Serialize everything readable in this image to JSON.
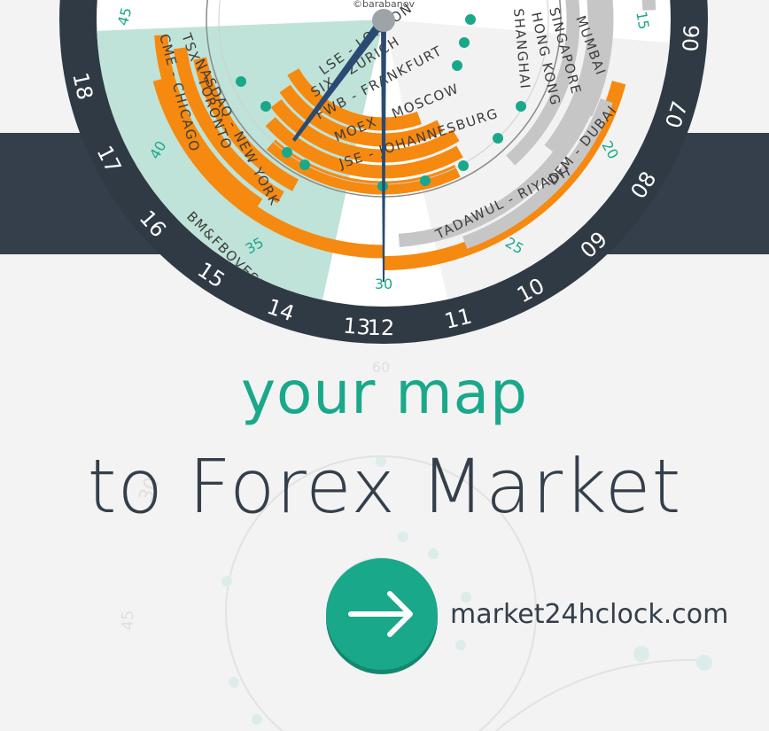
{
  "clock": {
    "credit": "©barabanov",
    "hour_numbers": [
      "18",
      "17",
      "16",
      "15",
      "14",
      "13",
      "12",
      "11",
      "10",
      "09",
      "08",
      "07",
      "06"
    ],
    "minute_marks": [
      "45",
      "40",
      "35",
      "30",
      "25",
      "20",
      "15"
    ],
    "markets": {
      "orange": [
        "BM&FBOVESPA - SAO PAULO",
        "MOEX - MOSCOW",
        "JSE - JOHANNESBURG",
        "FWB - FRANKFURT",
        "SIX - ZURICH",
        "LSE - LONDON",
        "NASDAQ - NEW YORK",
        "TSX - TORONTO",
        "CME - CHICAGO"
      ],
      "gray": [
        "TADAWUL - RIYADH",
        "DFM - DUBAI",
        "MUMBAI",
        "SINGAPORE",
        "HONG KONG",
        "SHANGHAI"
      ]
    }
  },
  "tagline": {
    "line1": "your map",
    "line2": "to Forex Market"
  },
  "cta": {
    "arrow_icon": "arrow-right-icon",
    "url": "market24hclock.com"
  },
  "background_marks": [
    "60",
    "30",
    "45"
  ],
  "colors": {
    "accent": "#1aa88a",
    "orange": "#f6890f",
    "dark": "#343f4b",
    "gray": "#c6c6c6",
    "mint": "#bfe3d8"
  }
}
